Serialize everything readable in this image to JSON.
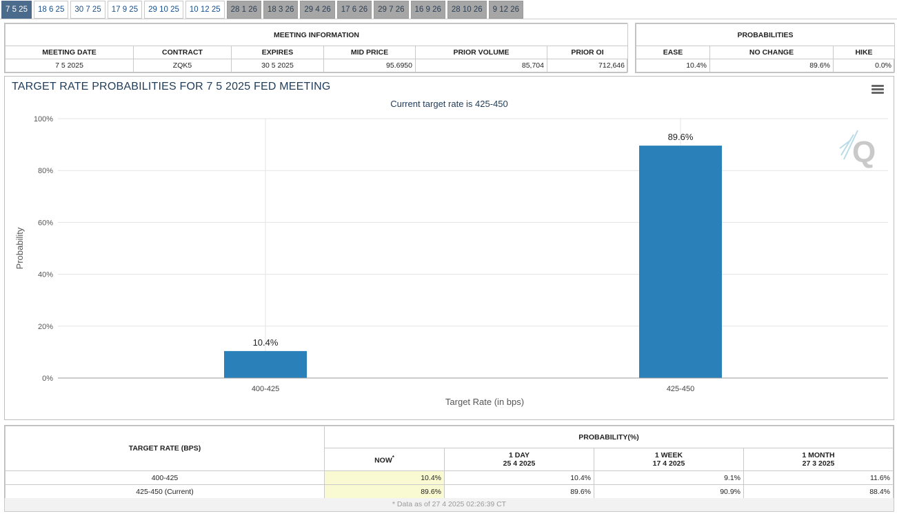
{
  "tabs": [
    {
      "label": "7 5 25",
      "state": "active"
    },
    {
      "label": "18 6 25",
      "state": "normal"
    },
    {
      "label": "30 7 25",
      "state": "normal"
    },
    {
      "label": "17 9 25",
      "state": "normal"
    },
    {
      "label": "29 10 25",
      "state": "normal"
    },
    {
      "label": "10 12 25",
      "state": "normal"
    },
    {
      "label": "28 1 26",
      "state": "future"
    },
    {
      "label": "18 3 26",
      "state": "future"
    },
    {
      "label": "29 4 26",
      "state": "future"
    },
    {
      "label": "17 6 26",
      "state": "future"
    },
    {
      "label": "29 7 26",
      "state": "future"
    },
    {
      "label": "16 9 26",
      "state": "future"
    },
    {
      "label": "28 10 26",
      "state": "future"
    },
    {
      "label": "9 12 26",
      "state": "future"
    }
  ],
  "meeting_info": {
    "caption": "MEETING INFORMATION",
    "headers": [
      "MEETING DATE",
      "CONTRACT",
      "EXPIRES",
      "MID PRICE",
      "PRIOR VOLUME",
      "PRIOR OI"
    ],
    "values": [
      "7 5 2025",
      "ZQK5",
      "30 5 2025",
      "95.6950",
      "85,704",
      "712,646"
    ]
  },
  "probabilities": {
    "caption": "PROBABILITIES",
    "headers": [
      "EASE",
      "NO CHANGE",
      "HIKE"
    ],
    "values": [
      "10.4%",
      "89.6%",
      "0.0%"
    ]
  },
  "chart": {
    "title": "TARGET RATE PROBABILITIES FOR 7 5 2025 FED MEETING",
    "subtitle": "Current target rate is 425-450",
    "menu_icon": "hamburger-menu-icon",
    "watermark_icon": "q-logo-icon"
  },
  "chart_data": {
    "type": "bar",
    "categories": [
      "400-425",
      "425-450"
    ],
    "values": [
      10.4,
      89.6
    ],
    "data_labels": [
      "10.4%",
      "89.6%"
    ],
    "xlabel": "Target Rate (in bps)",
    "ylabel": "Probability",
    "ylim": [
      0,
      100
    ],
    "yticks": [
      "0%",
      "20%",
      "40%",
      "60%",
      "80%",
      "100%"
    ],
    "grid": true,
    "bar_color": "#2a80b9"
  },
  "prob_table": {
    "rate_header": "TARGET RATE (BPS)",
    "prob_header": "PROBABILITY(%)",
    "columns": [
      {
        "label": "NOW",
        "date": "",
        "note": "*"
      },
      {
        "label": "1 DAY",
        "date": "25 4 2025",
        "note": ""
      },
      {
        "label": "1 WEEK",
        "date": "17 4 2025",
        "note": ""
      },
      {
        "label": "1 MONTH",
        "date": "27 3 2025",
        "note": ""
      }
    ],
    "rows": [
      {
        "rate": "400-425",
        "values": [
          "10.4%",
          "10.4%",
          "9.1%",
          "11.6%"
        ]
      },
      {
        "rate": "425-450 (Current)",
        "values": [
          "89.6%",
          "89.6%",
          "90.9%",
          "88.4%"
        ]
      }
    ],
    "footnote": "* Data as of 27 4 2025 02:26:39 CT"
  }
}
